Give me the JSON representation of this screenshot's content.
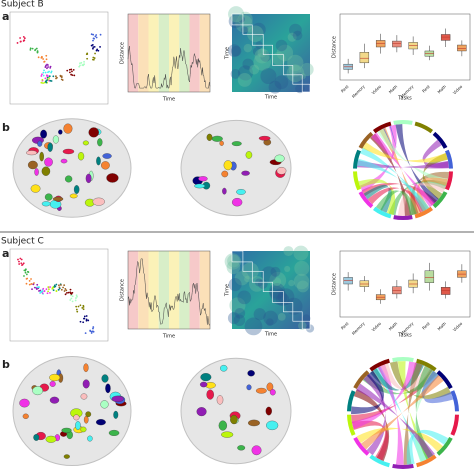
{
  "subjects": [
    {
      "title": "Subject B",
      "panel_a": "a",
      "panel_b": "b",
      "timeseries": {
        "x_label": "Time",
        "y_label": "Distance"
      },
      "matrix": {
        "x_label": "Time",
        "y_label": "Time"
      },
      "boxplot": {
        "x_label": "Tasks",
        "y_label": "Distance",
        "ylim": [
          0,
          100
        ],
        "categories": [
          "Rest",
          "Memory",
          "Video",
          "Math",
          "Memory",
          "Rest",
          "Math",
          "Video"
        ],
        "colors": [
          "#9ec9dd",
          "#f2d98a",
          "#f0a35e",
          "#e98a7a",
          "#f2d98a",
          "#b9dca0",
          "#e0594a",
          "#f0a35e"
        ],
        "boxes": [
          {
            "low": 10,
            "q1": 16,
            "median": 20,
            "q3": 24,
            "high": 32
          },
          {
            "low": 18,
            "q1": 26,
            "median": 33,
            "q3": 42,
            "high": 55
          },
          {
            "low": 40,
            "q1": 50,
            "median": 55,
            "q3": 60,
            "high": 70
          },
          {
            "low": 42,
            "q1": 50,
            "median": 55,
            "q3": 59,
            "high": 68
          },
          {
            "low": 38,
            "q1": 47,
            "median": 52,
            "q3": 57,
            "high": 66
          },
          {
            "low": 30,
            "q1": 36,
            "median": 40,
            "q3": 44,
            "high": 52
          },
          {
            "low": 50,
            "q1": 60,
            "median": 65,
            "q3": 69,
            "high": 78
          },
          {
            "low": 36,
            "q1": 44,
            "median": 48,
            "q3": 53,
            "high": 60
          }
        ]
      }
    },
    {
      "title": "Subject C",
      "panel_a": "a",
      "panel_b": "b",
      "timeseries": {
        "x_label": "Time",
        "y_label": "Distance"
      },
      "matrix": {
        "x_label": "Time",
        "y_label": "Time"
      },
      "boxplot": {
        "x_label": "Tasks",
        "y_label": "Distance",
        "ylim": [
          0,
          100
        ],
        "categories": [
          "Rest",
          "Memory",
          "Video",
          "Math",
          "Memory",
          "Rest",
          "Math",
          "Video"
        ],
        "colors": [
          "#9ec9dd",
          "#f2d98a",
          "#f0a35e",
          "#e98a7a",
          "#f2d98a",
          "#b9dca0",
          "#e0594a",
          "#f0a35e"
        ],
        "boxes": [
          {
            "low": 40,
            "q1": 50,
            "median": 55,
            "q3": 60,
            "high": 68
          },
          {
            "low": 38,
            "q1": 46,
            "median": 50,
            "q3": 55,
            "high": 62
          },
          {
            "low": 20,
            "q1": 26,
            "median": 30,
            "q3": 34,
            "high": 42
          },
          {
            "low": 28,
            "q1": 35,
            "median": 40,
            "q3": 46,
            "high": 56
          },
          {
            "low": 36,
            "q1": 45,
            "median": 50,
            "q3": 56,
            "high": 66
          },
          {
            "low": 40,
            "q1": 52,
            "median": 60,
            "q3": 70,
            "high": 82
          },
          {
            "low": 28,
            "q1": 34,
            "median": 40,
            "q3": 45,
            "high": 54
          },
          {
            "low": 52,
            "q1": 60,
            "median": 65,
            "q3": 70,
            "high": 80
          }
        ]
      }
    }
  ]
}
